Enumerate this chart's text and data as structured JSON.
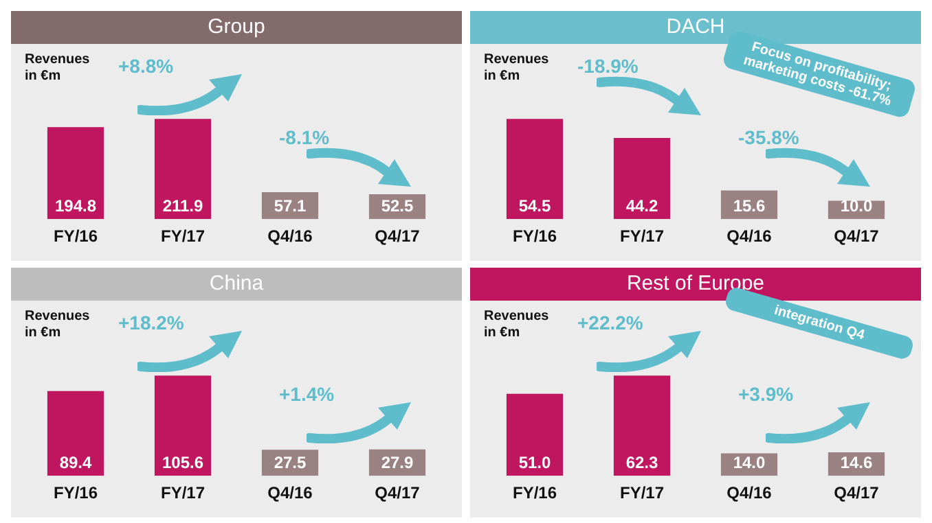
{
  "chart_data": [
    {
      "type": "bar",
      "title": "Group",
      "ylabel": "Revenues in €m",
      "categories": [
        "FY/16",
        "FY/17",
        "Q4/16",
        "Q4/17"
      ],
      "values": [
        194.8,
        211.9,
        57.1,
        52.5
      ],
      "value_labels": [
        "194.8",
        "211.9",
        "57.1",
        "52.5"
      ],
      "colors": [
        "#c0155f",
        "#c0155f",
        "#9a8283",
        "#9a8283"
      ],
      "tick_labels": "x",
      "grid": false,
      "legend": false,
      "annotations": [
        "+8.8%",
        "-8.1%"
      ]
    },
    {
      "type": "bar",
      "title": "DACH",
      "ylabel": "Revenues in €m",
      "categories": [
        "FY/16",
        "FY/17",
        "Q4/16",
        "Q4/17"
      ],
      "values": [
        54.5,
        44.2,
        15.6,
        10.0
      ],
      "value_labels": [
        "54.5",
        "44.2",
        "15.6",
        "10.0"
      ],
      "colors": [
        "#c0155f",
        "#c0155f",
        "#9a8283",
        "#9a8283"
      ],
      "tick_labels": "x",
      "grid": false,
      "legend": false,
      "annotations": [
        "-18.9%",
        "-35.8%",
        "Focus on profitability; marketing costs -61.7%"
      ]
    },
    {
      "type": "bar",
      "title": "China",
      "ylabel": "Revenues in €m",
      "categories": [
        "FY/16",
        "FY/17",
        "Q4/16",
        "Q4/17"
      ],
      "values": [
        89.4,
        105.6,
        27.5,
        27.9
      ],
      "value_labels": [
        "89.4",
        "105.6",
        "27.5",
        "27.9"
      ],
      "colors": [
        "#c0155f",
        "#c0155f",
        "#9a8283",
        "#9a8283"
      ],
      "tick_labels": "x",
      "grid": false,
      "legend": false,
      "annotations": [
        "+18.2%",
        "+1.4%"
      ]
    },
    {
      "type": "bar",
      "title": "Rest of Europe",
      "ylabel": "Revenues in €m",
      "categories": [
        "FY/16",
        "FY/17",
        "Q4/16",
        "Q4/17"
      ],
      "values": [
        51.0,
        62.3,
        14.0,
        14.6
      ],
      "value_labels": [
        "51.0",
        "62.3",
        "14.0",
        "14.6"
      ],
      "colors": [
        "#c0155f",
        "#c0155f",
        "#9a8283",
        "#9a8283"
      ],
      "tick_labels": "x",
      "grid": false,
      "legend": false,
      "annotations": [
        "+22.2%",
        "+3.9%",
        "integration Q4"
      ]
    }
  ]
}
